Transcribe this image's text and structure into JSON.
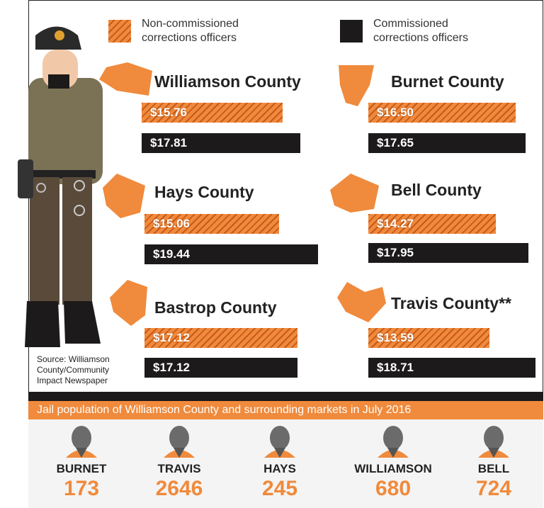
{
  "legend": {
    "non_commissioned": "Non-commissioned corrections officers",
    "commissioned": "Commissioned corrections officers"
  },
  "counties": [
    {
      "name": "Williamson County",
      "values": [
        15.76,
        17.81
      ],
      "value_labels": [
        "$15.76",
        "$17.81"
      ]
    },
    {
      "name": "Burnet County",
      "values": [
        16.5,
        17.65
      ],
      "value_labels": [
        "$16.50",
        "$17.65"
      ]
    },
    {
      "name": "Hays County",
      "values": [
        15.06,
        19.44
      ],
      "value_labels": [
        "$15.06",
        "$19.44"
      ]
    },
    {
      "name": "Bell County",
      "values": [
        14.27,
        17.95
      ],
      "value_labels": [
        "$14.27",
        "$17.95"
      ]
    },
    {
      "name": "Bastrop County",
      "values": [
        17.12,
        17.12
      ],
      "value_labels": [
        "$17.12",
        "$17.12"
      ]
    },
    {
      "name": "Travis County**",
      "values": [
        13.59,
        18.71
      ],
      "value_labels": [
        "$13.59",
        "$18.71"
      ]
    }
  ],
  "source": "Source: Williamson County/Community Impact Newspaper",
  "jail": {
    "title": "Jail population of Williamson County and surrounding markets in July 2016",
    "markets": [
      {
        "name": "BURNET",
        "population": 173
      },
      {
        "name": "TRAVIS",
        "population": 2646
      },
      {
        "name": "HAYS",
        "population": 245
      },
      {
        "name": "WILLIAMSON",
        "population": 680
      },
      {
        "name": "BELL",
        "population": 724
      }
    ]
  }
}
